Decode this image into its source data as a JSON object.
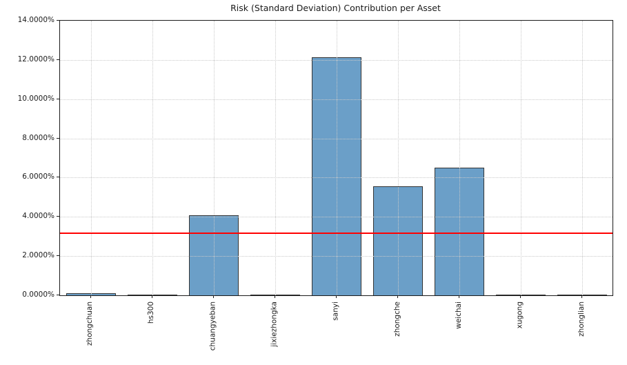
{
  "chart_data": {
    "type": "bar",
    "title": "Risk (Standard Deviation) Contribution per Asset",
    "xlabel": "",
    "ylabel": "",
    "categories": [
      "zhongchuan",
      "hs300",
      "chuangyeban",
      "jixiezhongka",
      "sanyi",
      "zhongche",
      "weichai",
      "xugong",
      "zhonglian"
    ],
    "values": [
      0.1,
      0.0,
      4.08,
      0.0,
      12.13,
      5.55,
      6.51,
      0.0,
      0.0
    ],
    "value_unit": "percent",
    "ylim": [
      0,
      14
    ],
    "ytick_step": 2,
    "ytick_labels": [
      "0.0000%",
      "2.0000%",
      "4.0000%",
      "6.0000%",
      "8.0000%",
      "10.0000%",
      "12.0000%",
      "14.0000%"
    ],
    "reference_line": {
      "value": 3.15,
      "color": "#ff0000"
    },
    "grid": true,
    "grid_style": "dotted",
    "bar_color": "#6b9fc8",
    "bar_edge_color": "#333333",
    "background_color": "#ffffff"
  }
}
